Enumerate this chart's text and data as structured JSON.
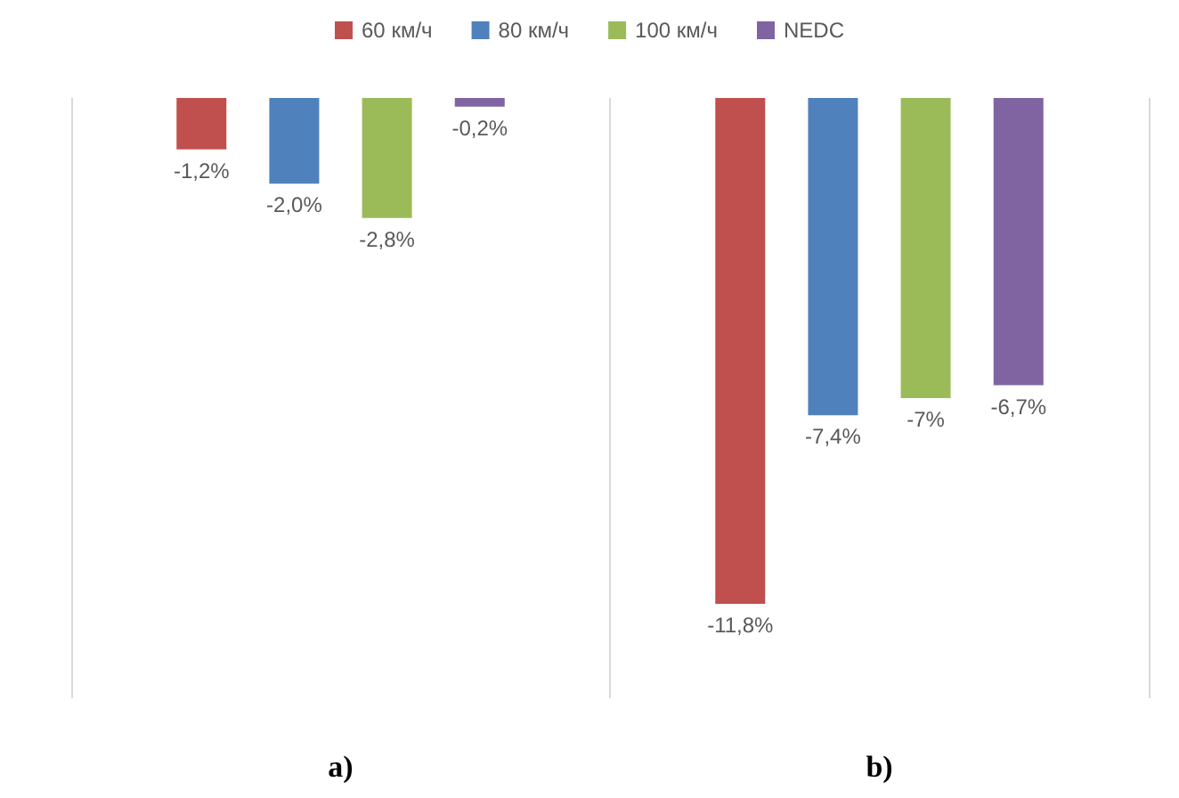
{
  "chart_data": {
    "type": "bar",
    "categories": [
      "a)",
      "b)"
    ],
    "series": [
      {
        "name": "60 км/ч",
        "color": "#c0504d",
        "values": [
          -1.2,
          -11.8
        ],
        "value_labels": [
          "-1,2%",
          "-11,8%"
        ]
      },
      {
        "name": "80 км/ч",
        "color": "#4f81bd",
        "values": [
          -2.0,
          -7.4
        ],
        "value_labels": [
          "-2,0%",
          "-7,4%"
        ]
      },
      {
        "name": "100 км/ч",
        "color": "#9bbb59",
        "values": [
          -2.8,
          -7
        ],
        "value_labels": [
          "-2,8%",
          "-7%"
        ]
      },
      {
        "name": "NEDC",
        "color": "#8064a2",
        "values": [
          -0.2,
          -6.7
        ],
        "value_labels": [
          "-0,2%",
          "-6,7%"
        ]
      }
    ],
    "ylim": [
      -14,
      0
    ],
    "grid": "x",
    "legend": "top",
    "tick_labels": "x"
  }
}
